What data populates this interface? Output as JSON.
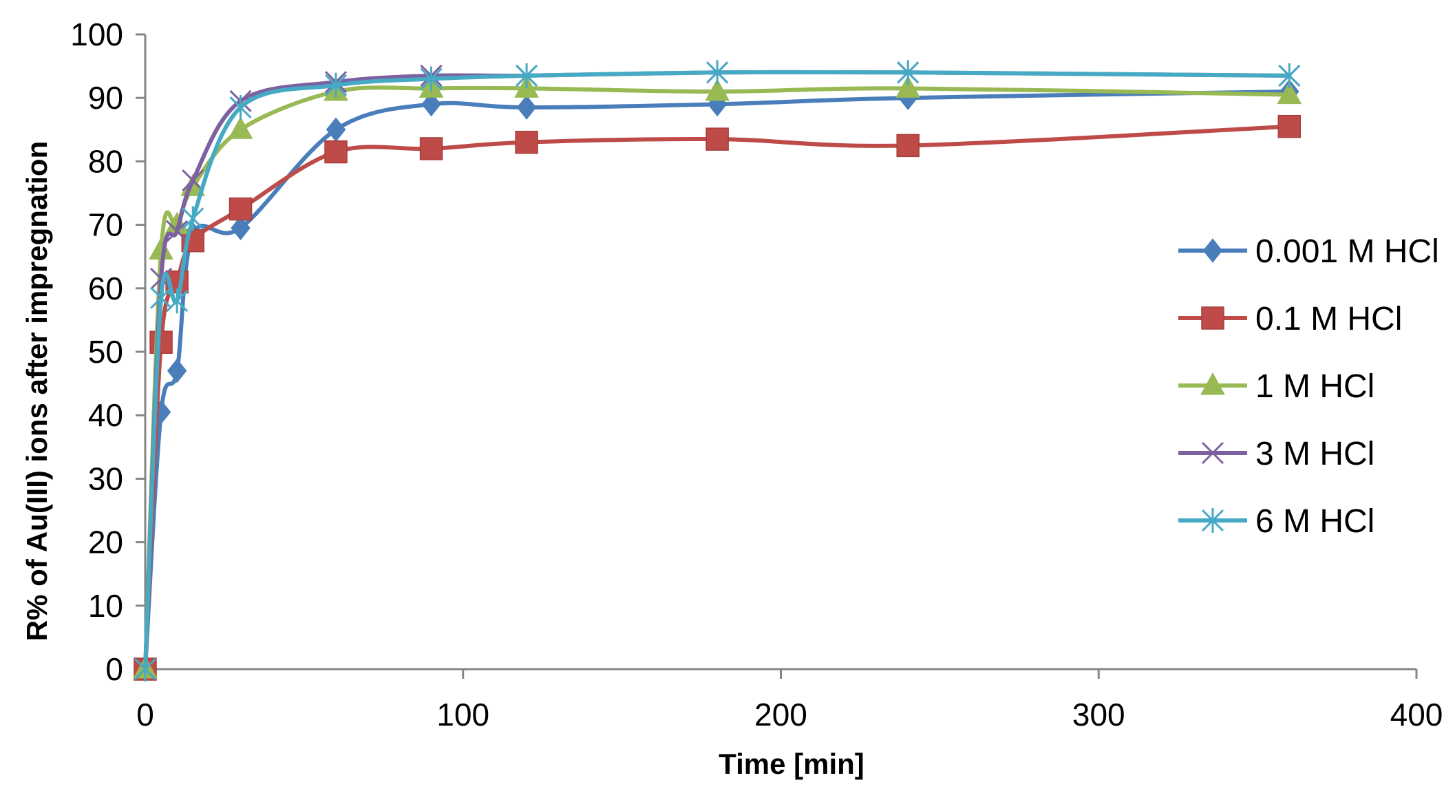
{
  "chart_data": {
    "type": "line",
    "title": "",
    "xlabel": "Time [min]",
    "ylabel": "R% of Au(III) ions after impregnation",
    "xlim": [
      0,
      400
    ],
    "ylim": [
      0,
      100
    ],
    "xticks": [
      0,
      100,
      200,
      300,
      400
    ],
    "yticks": [
      0,
      10,
      20,
      30,
      40,
      50,
      60,
      70,
      80,
      90,
      100
    ],
    "grid": false,
    "legend_position": "right",
    "series": [
      {
        "name": "0.001 M HCl",
        "color": "#4a7ebb",
        "marker": "diamond",
        "x": [
          0,
          5,
          10,
          15,
          30,
          60,
          90,
          120,
          180,
          240,
          360
        ],
        "y": [
          0,
          40.5,
          47,
          68.5,
          69.5,
          85,
          89,
          88.5,
          89,
          90,
          91
        ]
      },
      {
        "name": "0.1 M HCl",
        "color": "#be4b48",
        "marker": "square",
        "x": [
          0,
          5,
          10,
          15,
          30,
          60,
          90,
          120,
          180,
          240,
          360
        ],
        "y": [
          0,
          51.5,
          61,
          67.5,
          72.5,
          81.5,
          82,
          83,
          83.5,
          82.5,
          85.5
        ]
      },
      {
        "name": "1 M HCl",
        "color": "#98b954",
        "marker": "triangle",
        "x": [
          0,
          5,
          10,
          15,
          30,
          60,
          90,
          120,
          180,
          240,
          360
        ],
        "y": [
          0,
          66,
          70,
          76,
          85,
          91,
          91.5,
          91.5,
          91,
          91.5,
          90.5
        ]
      },
      {
        "name": "3 M HCl",
        "color": "#7d60a0",
        "marker": "x",
        "x": [
          0,
          5,
          10,
          15,
          30,
          60,
          90,
          120,
          180,
          240,
          360
        ],
        "y": [
          0,
          61.5,
          69,
          77,
          89.5,
          92.5,
          93.5,
          93.5,
          94,
          94,
          93.5
        ]
      },
      {
        "name": "6 M HCl",
        "color": "#46aac5",
        "marker": "asterisk",
        "x": [
          0,
          5,
          10,
          15,
          30,
          60,
          90,
          120,
          180,
          240,
          360
        ],
        "y": [
          0,
          58.5,
          58,
          71,
          88.5,
          92,
          93,
          93.5,
          94,
          94,
          93.5
        ]
      }
    ]
  }
}
